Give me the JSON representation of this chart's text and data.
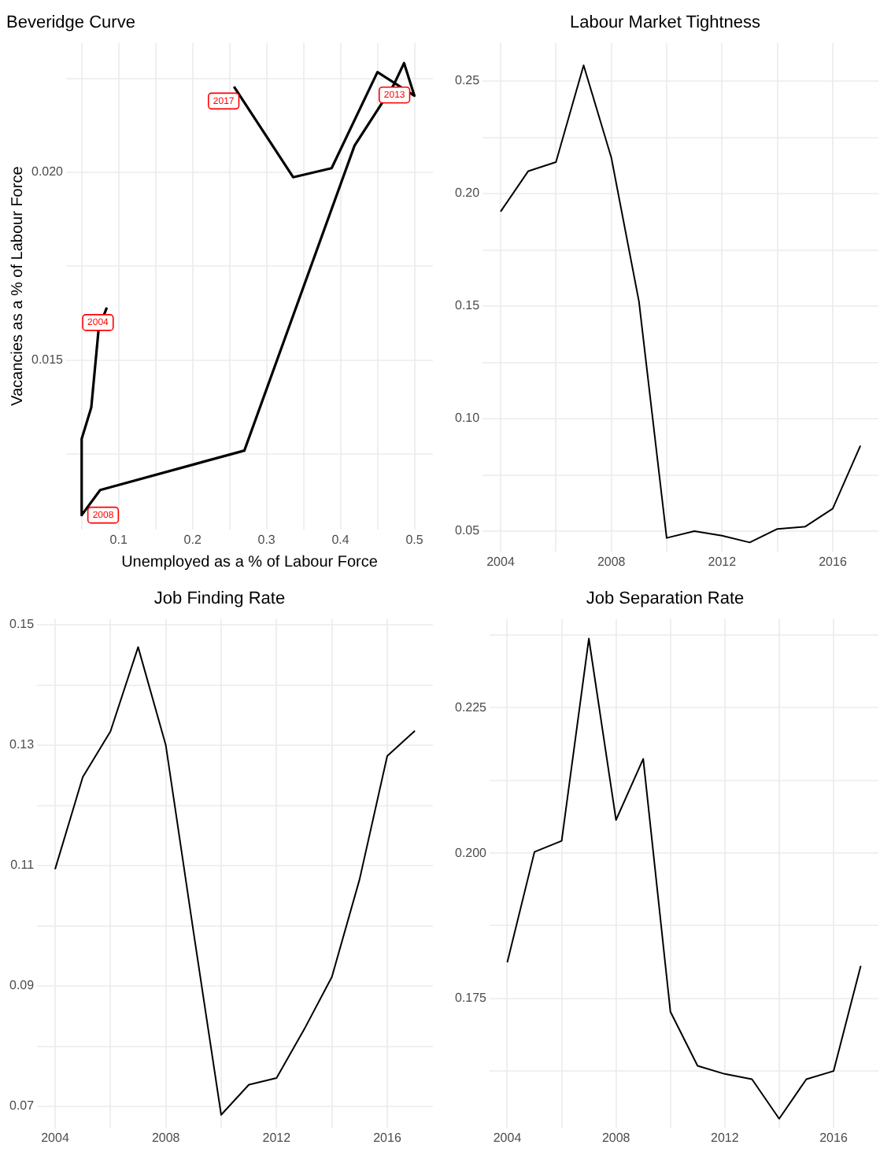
{
  "chart_data": [
    {
      "type": "line",
      "title": "Beveridge Curve",
      "xlabel": "Unemployed as a % of Labour Force",
      "ylabel": "Vacancies as a % of Labour Force",
      "grid": true,
      "marker": "none",
      "legend": false,
      "x": [
        0.084,
        0.073,
        0.063,
        0.05,
        0.05,
        0.075,
        0.27,
        0.419,
        0.472,
        0.486,
        0.5,
        0.45,
        0.388,
        0.336,
        0.256
      ],
      "series": [
        {
          "color": "#000000",
          "values": [
            0.0164,
            0.01584,
            0.01374,
            0.0129,
            0.01087,
            0.01154,
            0.01259,
            0.02071,
            0.02233,
            0.02291,
            0.02204,
            0.02267,
            0.02011,
            0.01987,
            0.02228
          ]
        }
      ],
      "xlim": [
        0.029,
        0.525
      ],
      "xticks": [
        {
          "value": 0.05,
          "label": null
        },
        0.1,
        {
          "value": 0.15,
          "label": null
        },
        0.2,
        {
          "value": 0.25,
          "label": null
        },
        0.3,
        {
          "value": 0.35,
          "label": null
        },
        0.4,
        {
          "value": 0.45,
          "label": null
        },
        0.5
      ],
      "ylim": [
        0.01049,
        0.02345
      ],
      "yticks": [
        {
          "value": 0.0125,
          "label": null
        },
        {
          "value": 0.015,
          "label": "0.015"
        },
        {
          "value": 0.0175,
          "label": null
        },
        {
          "value": 0.02,
          "label": "0.020"
        },
        {
          "value": 0.0225,
          "label": null
        }
      ],
      "annotations": [
        {
          "text": "2004",
          "x": 0.072,
          "y": 0.016
        },
        {
          "text": "2008",
          "x": 0.079,
          "y": 0.01087
        },
        {
          "text": "2013",
          "x": 0.473,
          "y": 0.02206
        },
        {
          "text": "2017",
          "x": 0.242,
          "y": 0.0219
        }
      ]
    },
    {
      "type": "line",
      "title": "Labour Market Tightness",
      "grid": true,
      "marker": "none",
      "legend": false,
      "x": [
        2004,
        2005,
        2006,
        2007,
        2008,
        2009,
        2010,
        2011,
        2012,
        2013,
        2014,
        2015,
        2016,
        2017
      ],
      "series": [
        {
          "color": "#000000",
          "values": [
            0.192,
            0.21,
            0.214,
            0.257,
            0.216,
            0.152,
            0.047,
            0.05,
            0.048,
            0.045,
            0.051,
            0.052,
            0.06,
            0.088
          ]
        }
      ],
      "xlim": [
        2003.35,
        2017.65
      ],
      "xticks": [
        2004,
        {
          "value": 2006,
          "label": null
        },
        2008,
        {
          "value": 2010,
          "label": null
        },
        2012,
        {
          "value": 2014,
          "label": null
        },
        2016
      ],
      "ylim": [
        0.041,
        0.267
      ],
      "yticks": [
        {
          "value": 0.05,
          "label": "0.05"
        },
        {
          "value": 0.075,
          "label": null
        },
        {
          "value": 0.1,
          "label": "0.10"
        },
        {
          "value": 0.125,
          "label": null
        },
        {
          "value": 0.15,
          "label": "0.15"
        },
        {
          "value": 0.175,
          "label": null
        },
        {
          "value": 0.2,
          "label": "0.20"
        },
        {
          "value": 0.225,
          "label": null
        },
        {
          "value": 0.25,
          "label": "0.25"
        }
      ]
    },
    {
      "type": "line",
      "title": "Job Finding Rate",
      "grid": true,
      "marker": "none",
      "legend": false,
      "x": [
        2004,
        2005,
        2006,
        2007,
        2008,
        2009,
        2010,
        2011,
        2012,
        2013,
        2014,
        2015,
        2016,
        2017
      ],
      "series": [
        {
          "color": "#000000",
          "values": [
            0.1094,
            0.1247,
            0.1323,
            0.1463,
            0.13,
            0.099,
            0.0686,
            0.0736,
            0.0747,
            0.0828,
            0.0915,
            0.1077,
            0.1282,
            0.1324
          ]
        }
      ],
      "xlim": [
        2003.35,
        2017.65
      ],
      "xticks": [
        2004,
        {
          "value": 2006,
          "label": null
        },
        2008,
        {
          "value": 2010,
          "label": null
        },
        2012,
        {
          "value": 2014,
          "label": null
        },
        2016
      ],
      "ylim": [
        0.0665,
        0.151
      ],
      "yticks": [
        {
          "value": 0.07,
          "label": "0.07"
        },
        {
          "value": 0.08,
          "label": null
        },
        {
          "value": 0.09,
          "label": "0.09"
        },
        {
          "value": 0.1,
          "label": null
        },
        {
          "value": 0.11,
          "label": "0.11"
        },
        {
          "value": 0.12,
          "label": null
        },
        {
          "value": 0.13,
          "label": "0.13"
        },
        {
          "value": 0.14,
          "label": null
        },
        {
          "value": 0.15,
          "label": "0.15"
        }
      ]
    },
    {
      "type": "line",
      "title": "Job Separation Rate",
      "grid": true,
      "marker": "none",
      "legend": false,
      "x": [
        2004,
        2005,
        2006,
        2007,
        2008,
        2009,
        2010,
        2011,
        2012,
        2013,
        2014,
        2015,
        2016,
        2017
      ],
      "series": [
        {
          "color": "#000000",
          "values": [
            0.1812,
            0.2002,
            0.2021,
            0.2369,
            0.2057,
            0.2162,
            0.1727,
            0.1634,
            0.162,
            0.1611,
            0.1543,
            0.1611,
            0.1625,
            0.1806
          ]
        }
      ],
      "xlim": [
        2003.35,
        2017.65
      ],
      "xticks": [
        2004,
        {
          "value": 2006,
          "label": null
        },
        2008,
        {
          "value": 2010,
          "label": null
        },
        2012,
        {
          "value": 2014,
          "label": null
        },
        2016
      ],
      "ylim": [
        0.1528,
        0.2403
      ],
      "yticks": [
        {
          "value": 0.1625,
          "label": null
        },
        {
          "value": 0.175,
          "label": "0.175"
        },
        {
          "value": 0.1875,
          "label": null
        },
        {
          "value": 0.2,
          "label": "0.200"
        },
        {
          "value": 0.2125,
          "label": null
        },
        {
          "value": 0.225,
          "label": "0.225"
        },
        {
          "value": 0.2375,
          "label": null
        }
      ]
    }
  ]
}
